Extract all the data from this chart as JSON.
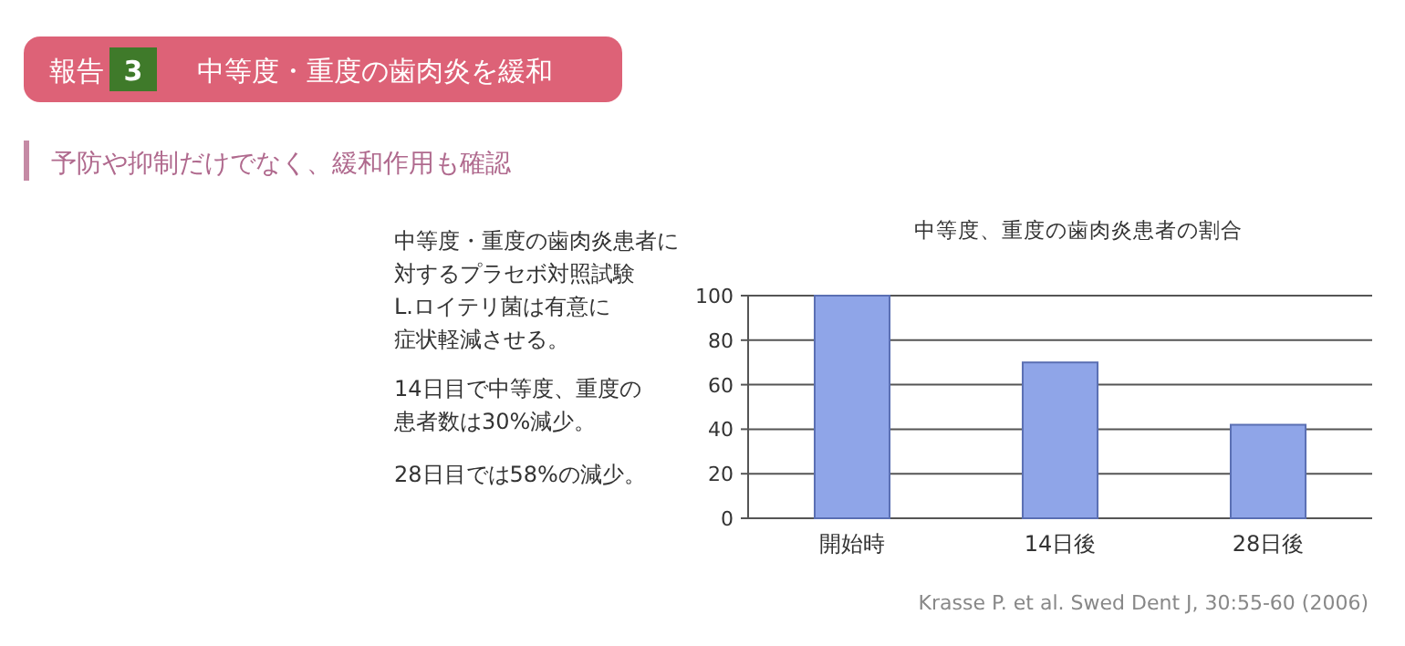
{
  "chart_data": {
    "type": "bar",
    "title": "中等度、重度の歯肉炎患者の割合",
    "subtitle": "予防や抑制だけでなく、緩和作用も確認",
    "categories": [
      "開始時",
      "14日後",
      "28日後"
    ],
    "values": [
      100,
      70,
      42
    ],
    "color": "#8fa5e8",
    "ylim": [
      0,
      100
    ],
    "yticks": [
      0,
      20,
      40,
      60,
      80,
      100
    ],
    "grid": "y",
    "annotations": [
      "報告",
      "3",
      "中等度・重度の歯肉炎を緩和",
      "中等度・重度の歯肉炎患者に",
      "対するプラセボ対照試験",
      "L.ロイテリ菌は有意に",
      "症状軽減させる。",
      "14日目で中等度、重度の",
      "患者数は30%減少。",
      "28日目では58%の減少。",
      "Krasse P. et al. Swed Dent J, 30:55-60 (2006)"
    ]
  }
}
